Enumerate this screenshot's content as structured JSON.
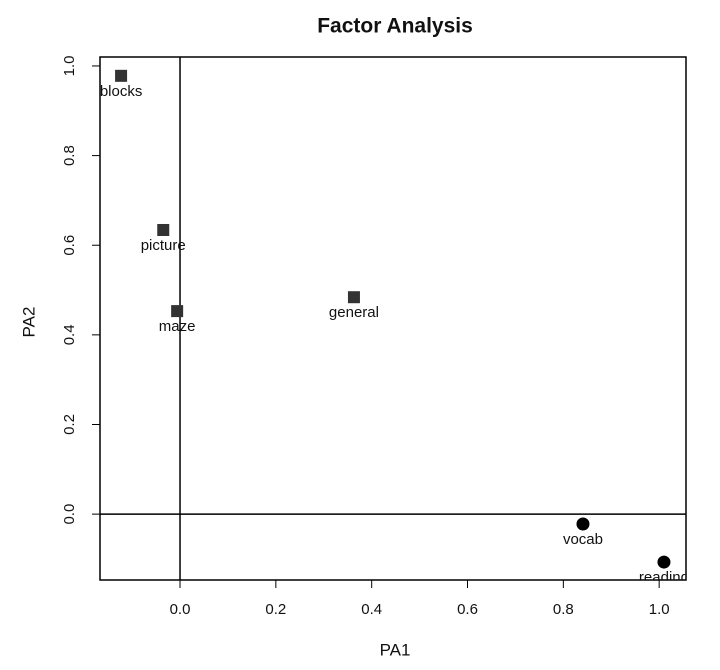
{
  "chart_data": {
    "type": "scatter",
    "title": "Factor Analysis",
    "x_label": "PA1",
    "y_label": "PA2",
    "xlim": [
      -0.167,
      1.056
    ],
    "ylim": [
      -0.147,
      1.02
    ],
    "xticks": [
      {
        "value": 0,
        "label": "0.0"
      },
      0.2,
      0.4,
      0.6,
      0.8,
      {
        "value": 1,
        "label": "1.0"
      }
    ],
    "yticks": [
      {
        "value": 0,
        "label": "0.0"
      },
      0.2,
      0.4,
      0.6,
      0.8,
      {
        "value": 1,
        "label": "1.0"
      }
    ],
    "hline": 0,
    "vline": 0,
    "series": [
      {
        "marker": "square",
        "color": "#333333",
        "x": [
          -0.123,
          -0.035,
          -0.006,
          0.363
        ],
        "values": [
          0.978,
          0.634,
          0.453,
          0.484
        ],
        "point_labels": [
          "blocks",
          "picture",
          "maze",
          "general"
        ]
      },
      {
        "marker": "circle",
        "color": "#000000",
        "x": [
          0.841,
          1.01
        ],
        "values": [
          -0.022,
          -0.107
        ],
        "point_labels": [
          "vocab",
          "reading"
        ]
      }
    ]
  }
}
